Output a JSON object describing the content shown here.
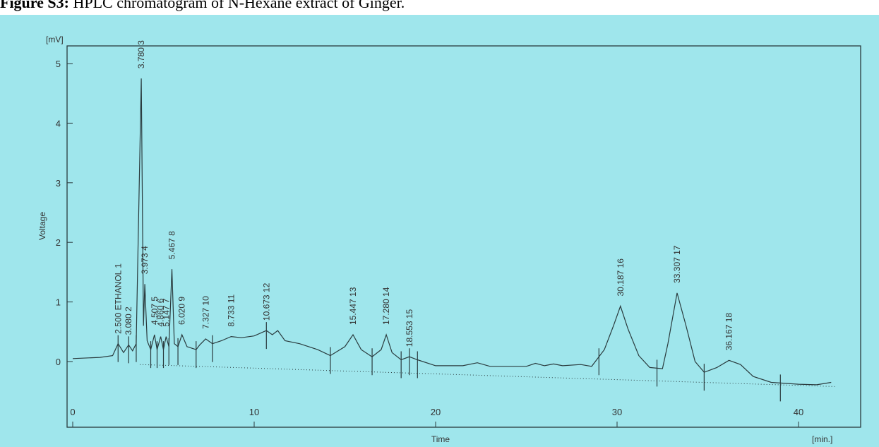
{
  "caption": {
    "label": "Figure S3:",
    "text": "HPLC chromatogram of N-Hexane extract of Ginger."
  },
  "chart_data": {
    "type": "line",
    "title": "",
    "xlabel": "Time",
    "ylabel": "Voltage",
    "x_unit": "[min.]",
    "y_unit": "[mV]",
    "xlim": [
      0,
      43
    ],
    "ylim": [
      -0.6,
      5.3
    ],
    "x_ticks": [
      0,
      10,
      20,
      30,
      40
    ],
    "y_ticks": [
      0,
      1,
      2,
      3,
      4,
      5
    ],
    "grid": false,
    "series": [
      {
        "points": [
          [
            0,
            0.05
          ],
          [
            1.5,
            0.07
          ],
          [
            2.2,
            0.1
          ],
          [
            2.5,
            0.3
          ],
          [
            2.8,
            0.15
          ],
          [
            3.08,
            0.28
          ],
          [
            3.3,
            0.18
          ],
          [
            3.5,
            0.3
          ],
          [
            3.78,
            4.75
          ],
          [
            3.9,
            0.6
          ],
          [
            3.973,
            1.3
          ],
          [
            4.1,
            0.35
          ],
          [
            4.3,
            0.2
          ],
          [
            4.507,
            0.45
          ],
          [
            4.65,
            0.2
          ],
          [
            4.85,
            0.42
          ],
          [
            5.0,
            0.2
          ],
          [
            5.147,
            0.42
          ],
          [
            5.3,
            0.25
          ],
          [
            5.467,
            1.55
          ],
          [
            5.6,
            0.3
          ],
          [
            5.8,
            0.25
          ],
          [
            6.02,
            0.45
          ],
          [
            6.3,
            0.25
          ],
          [
            6.8,
            0.2
          ],
          [
            7.0,
            0.28
          ],
          [
            7.327,
            0.38
          ],
          [
            7.7,
            0.3
          ],
          [
            8.2,
            0.35
          ],
          [
            8.733,
            0.42
          ],
          [
            9.3,
            0.4
          ],
          [
            10.0,
            0.43
          ],
          [
            10.673,
            0.52
          ],
          [
            11.0,
            0.45
          ],
          [
            11.3,
            0.52
          ],
          [
            11.7,
            0.35
          ],
          [
            12.5,
            0.3
          ],
          [
            13.5,
            0.2
          ],
          [
            14.2,
            0.1
          ],
          [
            15.0,
            0.25
          ],
          [
            15.447,
            0.45
          ],
          [
            15.9,
            0.2
          ],
          [
            16.5,
            0.08
          ],
          [
            17.0,
            0.2
          ],
          [
            17.28,
            0.45
          ],
          [
            17.6,
            0.15
          ],
          [
            18.1,
            0.03
          ],
          [
            18.553,
            0.08
          ],
          [
            19.0,
            0.03
          ],
          [
            20.0,
            -0.07
          ],
          [
            21.5,
            -0.07
          ],
          [
            22.3,
            -0.02
          ],
          [
            23.0,
            -0.08
          ],
          [
            25.0,
            -0.08
          ],
          [
            25.5,
            -0.03
          ],
          [
            26.0,
            -0.07
          ],
          [
            26.5,
            -0.04
          ],
          [
            27.0,
            -0.07
          ],
          [
            28.0,
            -0.05
          ],
          [
            28.6,
            -0.08
          ],
          [
            29.3,
            0.2
          ],
          [
            29.8,
            0.6
          ],
          [
            30.187,
            0.93
          ],
          [
            30.6,
            0.55
          ],
          [
            31.2,
            0.1
          ],
          [
            31.8,
            -0.1
          ],
          [
            32.5,
            -0.12
          ],
          [
            32.8,
            0.3
          ],
          [
            33.307,
            1.15
          ],
          [
            33.8,
            0.6
          ],
          [
            34.3,
            0.0
          ],
          [
            34.8,
            -0.18
          ],
          [
            35.5,
            -0.1
          ],
          [
            36.167,
            0.02
          ],
          [
            36.8,
            -0.05
          ],
          [
            37.5,
            -0.25
          ],
          [
            38.5,
            -0.35
          ],
          [
            40.0,
            -0.38
          ],
          [
            41.0,
            -0.39
          ],
          [
            41.8,
            -0.35
          ]
        ]
      }
    ],
    "baseline": {
      "style": "dotted",
      "points": [
        [
          3.7,
          -0.05
        ],
        [
          42.0,
          -0.42
        ]
      ]
    },
    "peak_labels": [
      {
        "text": "2.500 ETHANOL 1",
        "x": 2.5,
        "y": 0.3
      },
      {
        "text": "3.080 2",
        "x": 3.08,
        "y": 0.28
      },
      {
        "text": "3.780 3",
        "x": 3.78,
        "y": 4.75
      },
      {
        "text": "3.973 4",
        "x": 3.973,
        "y": 1.3
      },
      {
        "text": "4.507 5",
        "x": 4.507,
        "y": 0.45
      },
      {
        "text": "4.860 6",
        "x": 4.85,
        "y": 0.42
      },
      {
        "text": "5.147 7",
        "x": 5.147,
        "y": 0.42
      },
      {
        "text": "5.467 8",
        "x": 5.467,
        "y": 1.55
      },
      {
        "text": "6.020 9",
        "x": 6.02,
        "y": 0.45
      },
      {
        "text": "7.327 10",
        "x": 7.327,
        "y": 0.38
      },
      {
        "text": "8.733 11",
        "x": 8.733,
        "y": 0.42
      },
      {
        "text": "10.673 12",
        "x": 10.673,
        "y": 0.52
      },
      {
        "text": "15.447 13",
        "x": 15.447,
        "y": 0.45
      },
      {
        "text": "17.280 14",
        "x": 17.28,
        "y": 0.45
      },
      {
        "text": "18.553 15",
        "x": 18.553,
        "y": 0.08
      },
      {
        "text": "30.187 16",
        "x": 30.187,
        "y": 0.93
      },
      {
        "text": "33.307 17",
        "x": 33.307,
        "y": 1.15
      },
      {
        "text": "36.167 18",
        "x": 36.167,
        "y": 0.02
      }
    ],
    "integration_marks": [
      2.5,
      3.08,
      3.5,
      4.3,
      4.65,
      5.0,
      5.3,
      5.8,
      6.8,
      7.7,
      10.673,
      14.2,
      16.5,
      18.1,
      18.553,
      19.0,
      29.0,
      32.2,
      34.8,
      39.0
    ]
  },
  "colors": {
    "scan_background": "#9fe6ec",
    "trace": "#2a3b3e",
    "frame": "#2a3b3e",
    "text": "#333333"
  }
}
